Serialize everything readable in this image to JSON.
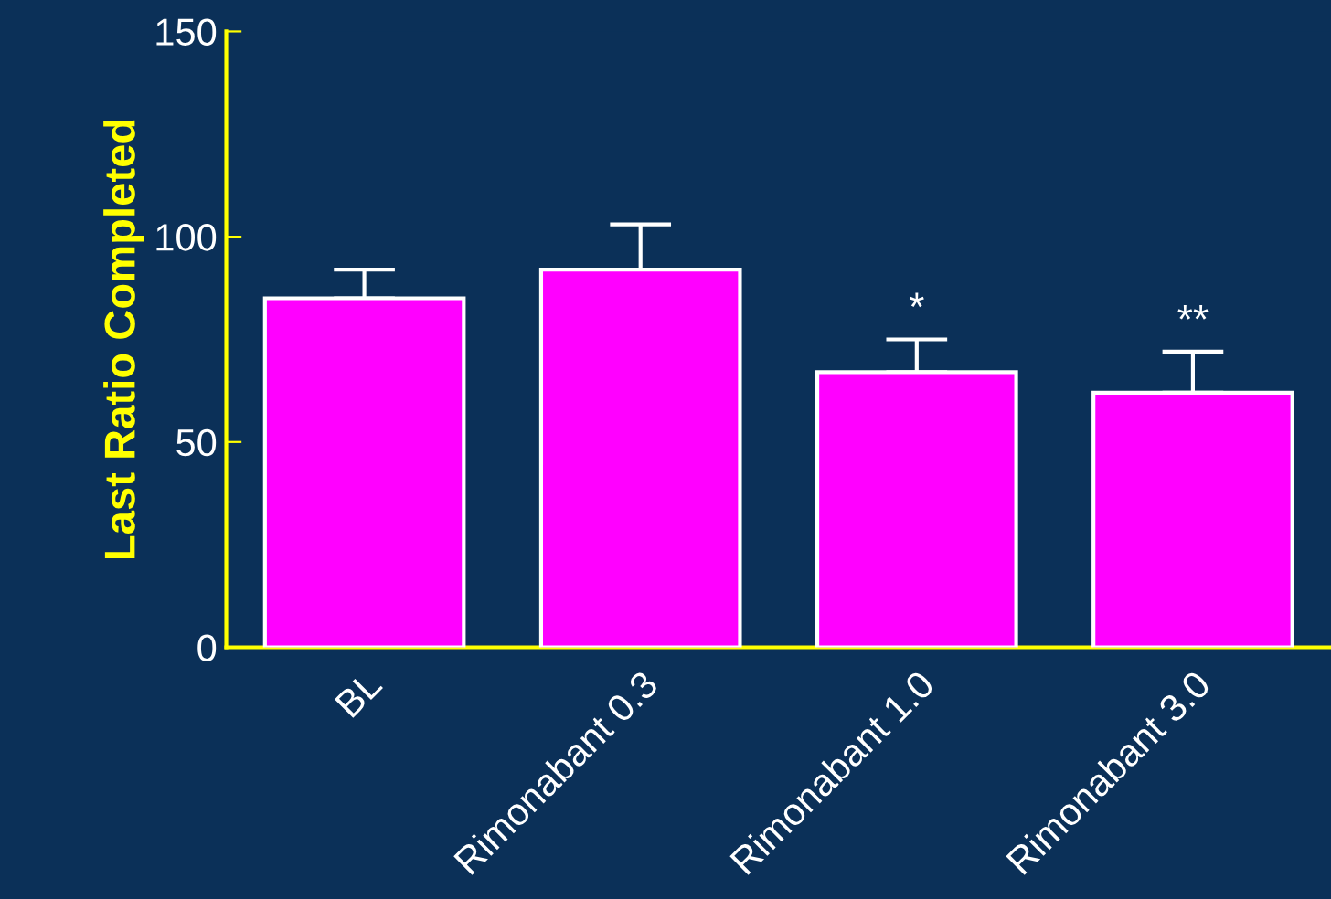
{
  "chart_data": {
    "type": "bar",
    "ylabel": "Last Ratio Completed",
    "categories": [
      "BL",
      "Rimonabant 0.3",
      "Rimonabant 1.0",
      "Rimonabant 3.0"
    ],
    "values": [
      85,
      92,
      67,
      62
    ],
    "errors": [
      [
        85,
        92
      ],
      [
        92,
        103
      ],
      [
        67,
        75
      ],
      [
        62,
        72
      ]
    ],
    "color": "#ff00ff",
    "ylim": [
      0,
      150
    ],
    "yticks": [
      0,
      50,
      100,
      150
    ],
    "grid": false,
    "annotations": [
      {
        "text": "*",
        "x": "Rimonabant 1.0",
        "y": 75
      },
      {
        "text": "**",
        "x": "Rimonabant 3.0",
        "y": 72
      }
    ]
  }
}
